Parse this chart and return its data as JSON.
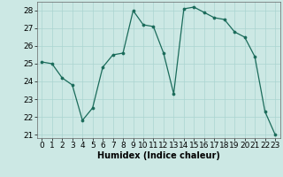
{
  "x": [
    0,
    1,
    2,
    3,
    4,
    5,
    6,
    7,
    8,
    9,
    10,
    11,
    12,
    13,
    14,
    15,
    16,
    17,
    18,
    19,
    20,
    21,
    22,
    23
  ],
  "y": [
    25.1,
    25.0,
    24.2,
    23.8,
    21.8,
    22.5,
    24.8,
    25.5,
    25.6,
    28.0,
    27.2,
    27.1,
    25.6,
    23.3,
    28.1,
    28.2,
    27.9,
    27.6,
    27.5,
    26.8,
    26.5,
    25.4,
    22.3,
    21.0
  ],
  "line_color": "#1a6b5a",
  "marker_color": "#1a6b5a",
  "bg_color": "#cce8e4",
  "grid_color": "#aad4d0",
  "xlabel": "Humidex (Indice chaleur)",
  "xlim": [
    -0.5,
    23.5
  ],
  "ylim": [
    20.8,
    28.5
  ],
  "yticks": [
    21,
    22,
    23,
    24,
    25,
    26,
    27,
    28
  ],
  "xticks": [
    0,
    1,
    2,
    3,
    4,
    5,
    6,
    7,
    8,
    9,
    10,
    11,
    12,
    13,
    14,
    15,
    16,
    17,
    18,
    19,
    20,
    21,
    22,
    23
  ],
  "label_fontsize": 7.0,
  "tick_fontsize": 6.5
}
